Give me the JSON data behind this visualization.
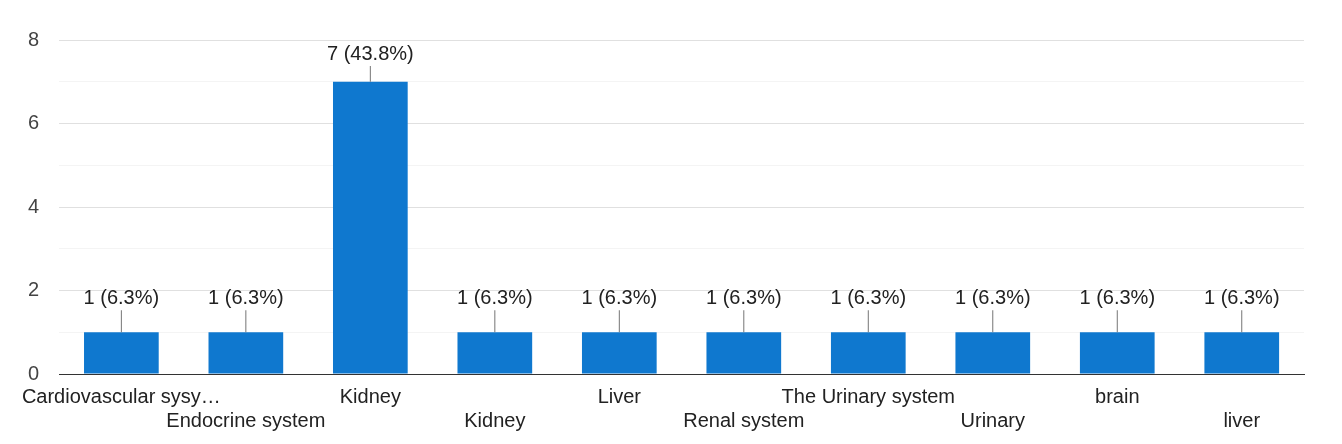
{
  "chart_data": {
    "type": "bar",
    "categories": [
      "Cardiovascular sysy…",
      "Endocrine system",
      "Kidney",
      "Kidney",
      "Liver",
      "Renal system",
      "The Urinary system",
      "Urinary",
      "brain",
      "liver"
    ],
    "values": [
      1,
      1,
      7,
      1,
      1,
      1,
      1,
      1,
      1,
      1
    ],
    "color": "#0f78cf",
    "value_labels": [
      "1 (6.3%)",
      "1 (6.3%)",
      "7 (43.8%)",
      "1 (6.3%)",
      "1 (6.3%)",
      "1 (6.3%)",
      "1 (6.3%)",
      "1 (6.3%)",
      "1 (6.3%)",
      "1 (6.3%)"
    ],
    "ylim": [
      0,
      8
    ],
    "yticks": [
      0,
      {
        "value": 1,
        "label": null
      },
      2,
      {
        "value": 3,
        "label": null
      },
      4,
      {
        "value": 5,
        "label": null
      },
      6,
      {
        "value": 7,
        "label": null
      },
      8
    ],
    "grid": "y",
    "legend": false
  }
}
